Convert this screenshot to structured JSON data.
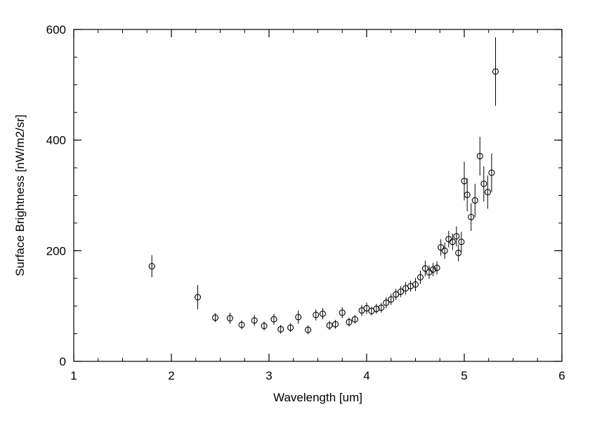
{
  "page": {
    "background": "#ffffff",
    "foreground": "#000000"
  },
  "chart_data": {
    "type": "scatter",
    "title": "",
    "xlabel": "Wavelength [um]",
    "ylabel": "Surface Brightness [nW/m2/sr]",
    "xlim": [
      1,
      6
    ],
    "ylim": [
      0,
      600
    ],
    "x_ticks": [
      1,
      2,
      3,
      4,
      5,
      6
    ],
    "y_ticks": [
      0,
      200,
      400,
      600
    ],
    "x_minor_step": 0.25,
    "y_minor_step": 50,
    "grid": false,
    "legend": "none",
    "marker": "open-circle",
    "marker_color": "#000000",
    "error_bars": "vertical",
    "points": [
      {
        "x": 1.8,
        "y": 172,
        "err": 20
      },
      {
        "x": 2.27,
        "y": 116,
        "err": 22
      },
      {
        "x": 2.45,
        "y": 79,
        "err": 8
      },
      {
        "x": 2.6,
        "y": 78,
        "err": 10
      },
      {
        "x": 2.72,
        "y": 66,
        "err": 8
      },
      {
        "x": 2.85,
        "y": 74,
        "err": 10
      },
      {
        "x": 2.95,
        "y": 64,
        "err": 8
      },
      {
        "x": 3.05,
        "y": 76,
        "err": 10
      },
      {
        "x": 3.12,
        "y": 58,
        "err": 8
      },
      {
        "x": 3.22,
        "y": 61,
        "err": 8
      },
      {
        "x": 3.3,
        "y": 80,
        "err": 12
      },
      {
        "x": 3.4,
        "y": 57,
        "err": 8
      },
      {
        "x": 3.48,
        "y": 84,
        "err": 10
      },
      {
        "x": 3.55,
        "y": 86,
        "err": 10
      },
      {
        "x": 3.62,
        "y": 65,
        "err": 8
      },
      {
        "x": 3.68,
        "y": 67,
        "err": 8
      },
      {
        "x": 3.75,
        "y": 88,
        "err": 10
      },
      {
        "x": 3.82,
        "y": 71,
        "err": 8
      },
      {
        "x": 3.88,
        "y": 76,
        "err": 8
      },
      {
        "x": 3.95,
        "y": 92,
        "err": 10
      },
      {
        "x": 4.0,
        "y": 96,
        "err": 10
      },
      {
        "x": 4.05,
        "y": 91,
        "err": 8
      },
      {
        "x": 4.1,
        "y": 95,
        "err": 9
      },
      {
        "x": 4.15,
        "y": 97,
        "err": 9
      },
      {
        "x": 4.2,
        "y": 106,
        "err": 10
      },
      {
        "x": 4.25,
        "y": 112,
        "err": 10
      },
      {
        "x": 4.3,
        "y": 121,
        "err": 10
      },
      {
        "x": 4.35,
        "y": 126,
        "err": 10
      },
      {
        "x": 4.4,
        "y": 132,
        "err": 11
      },
      {
        "x": 4.45,
        "y": 136,
        "err": 10
      },
      {
        "x": 4.5,
        "y": 139,
        "err": 12
      },
      {
        "x": 4.55,
        "y": 152,
        "err": 12
      },
      {
        "x": 4.6,
        "y": 168,
        "err": 14
      },
      {
        "x": 4.64,
        "y": 161,
        "err": 12
      },
      {
        "x": 4.68,
        "y": 166,
        "err": 12
      },
      {
        "x": 4.72,
        "y": 169,
        "err": 12
      },
      {
        "x": 4.76,
        "y": 206,
        "err": 15
      },
      {
        "x": 4.8,
        "y": 200,
        "err": 15
      },
      {
        "x": 4.84,
        "y": 221,
        "err": 15
      },
      {
        "x": 4.88,
        "y": 216,
        "err": 15
      },
      {
        "x": 4.92,
        "y": 226,
        "err": 18
      },
      {
        "x": 4.94,
        "y": 196,
        "err": 15
      },
      {
        "x": 4.97,
        "y": 216,
        "err": 18
      },
      {
        "x": 5.0,
        "y": 326,
        "err": 35
      },
      {
        "x": 5.03,
        "y": 301,
        "err": 30
      },
      {
        "x": 5.07,
        "y": 261,
        "err": 25
      },
      {
        "x": 5.11,
        "y": 291,
        "err": 30
      },
      {
        "x": 5.16,
        "y": 371,
        "err": 35
      },
      {
        "x": 5.2,
        "y": 321,
        "err": 32
      },
      {
        "x": 5.24,
        "y": 306,
        "err": 30
      },
      {
        "x": 5.28,
        "y": 341,
        "err": 35
      },
      {
        "x": 5.32,
        "y": 524,
        "err": 62
      }
    ]
  }
}
